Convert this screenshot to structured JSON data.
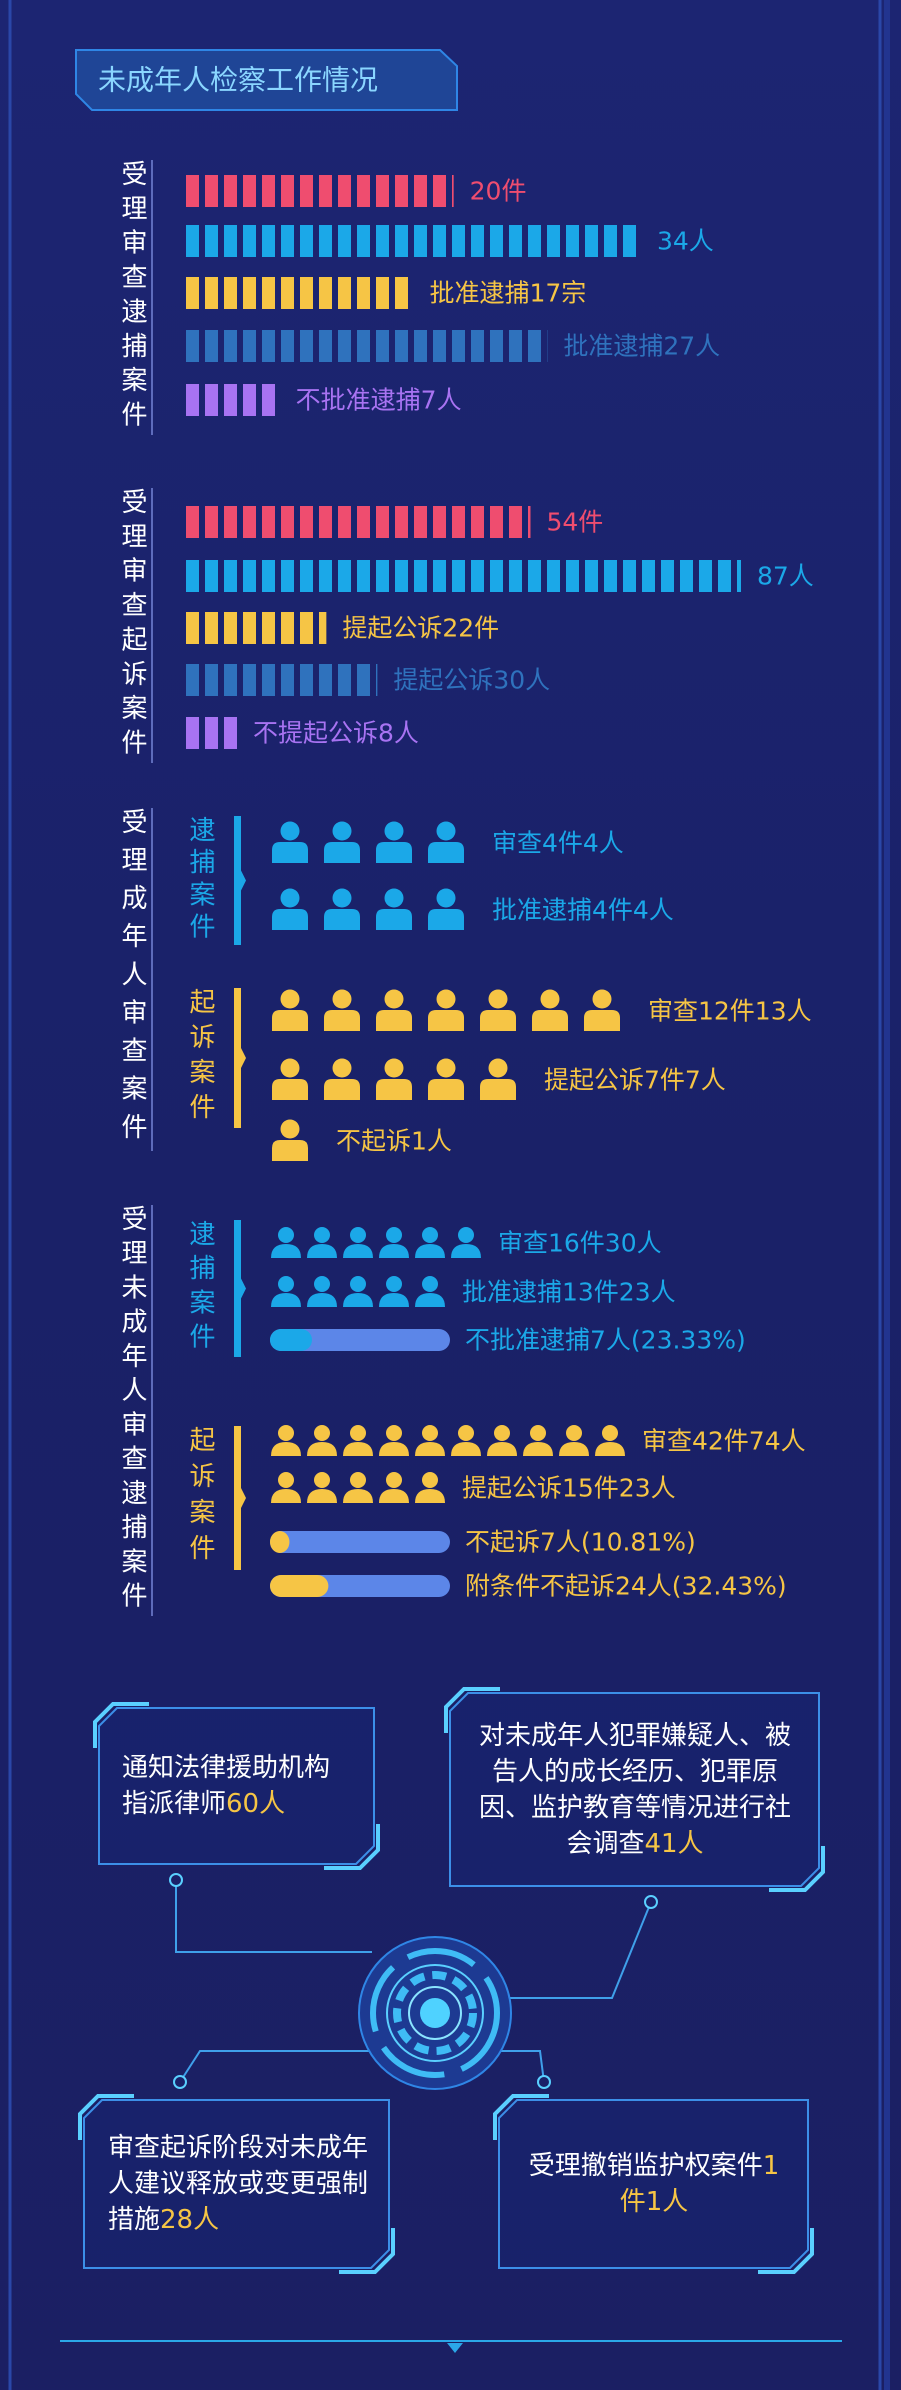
{
  "header": {
    "title": "未成年人检察工作情况"
  },
  "sections": [
    {
      "label": "受理审查逮捕案件",
      "bars": [
        {
          "value": 20,
          "label": "20件",
          "color": "#ef4d6f"
        },
        {
          "value": 34,
          "label": "34人",
          "color": "#1ba8e8"
        },
        {
          "value": 17,
          "label": "批准逮捕17宗",
          "color": "#f6c545"
        },
        {
          "value": 27,
          "label": "批准逮捕27人",
          "color": "#2f72bd"
        },
        {
          "value": 7,
          "label": "不批准逮捕7人",
          "color": "#a873f2"
        }
      ]
    },
    {
      "label": "受理审查起诉案件",
      "bars": [
        {
          "value": 54,
          "label": "54件",
          "color": "#ef4d6f"
        },
        {
          "value": 87,
          "label": "87人",
          "color": "#1ba8e8"
        },
        {
          "value": 22,
          "label": "提起公诉22件",
          "color": "#f6c545"
        },
        {
          "value": 30,
          "label": "提起公诉30人",
          "color": "#2f72bd"
        },
        {
          "value": 8,
          "label": "不提起公诉8人",
          "color": "#a873f2"
        }
      ]
    }
  ],
  "adult": {
    "label": "受理成年人审查案件",
    "groups": [
      {
        "label": "逮捕案件",
        "color": "#1ba8e8",
        "items": [
          {
            "label": "审查4件4人"
          },
          {
            "label": "批准逮捕4件4人"
          }
        ]
      },
      {
        "label": "起诉案件",
        "color": "#f6c545",
        "items": [
          {
            "label": "审查12件13人"
          },
          {
            "label": "提起公诉7件7人"
          },
          {
            "label": "不起诉1人"
          }
        ]
      }
    ]
  },
  "juvenile": {
    "label": "受理未成年人审查逮捕案件",
    "groups": [
      {
        "label": "逮捕案件",
        "color": "#1ba8e8",
        "items": [
          {
            "label": "审查16件30人"
          },
          {
            "label": "批准逮捕13件23人"
          },
          {
            "label": "不批准逮捕7人(23.33%)",
            "value": 23.33
          }
        ]
      },
      {
        "label": "起诉案件",
        "color": "#f6c545",
        "items": [
          {
            "label": "审查42件74人"
          },
          {
            "label": "提起公诉15件23人"
          },
          {
            "label": "不起诉7人(10.81%)",
            "value": 10.81
          },
          {
            "label": "附条件不起诉24人(32.43%)",
            "value": 32.43
          }
        ]
      }
    ]
  },
  "notes": [
    {
      "text": "通知法律援助机构指派律师",
      "highlight": "60人"
    },
    {
      "text": "对未成年人犯罪嫌疑人、被告人的成长经历、犯罪原因、监护教育等情况进行社会调查",
      "highlight": "41人"
    },
    {
      "text": "审查起诉阶段对未成年人建议释放或变更强制措施",
      "highlight": "28人"
    },
    {
      "text": "受理撤销监护权案件",
      "highlight": "1件1人"
    }
  ]
}
